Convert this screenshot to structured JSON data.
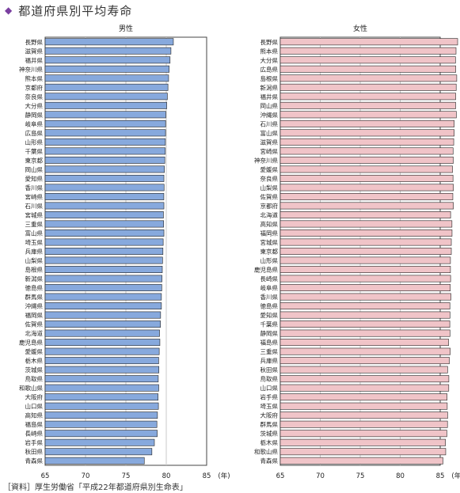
{
  "title": "都道府県別平均寿命",
  "source": "［資料］厚生労働省「平成22年都道府県別生命表」",
  "colors": {
    "male": "#87a9dd",
    "female": "#f0c4c8",
    "bar_stroke": "#222222",
    "title_bullet": "#7a3fa0",
    "grid": "#c8c8c8"
  },
  "chart_data": [
    {
      "type": "bar",
      "orientation": "horizontal",
      "title": "男性",
      "unit": "(年)",
      "xlim": [
        65,
        85
      ],
      "ticks": [
        65,
        70,
        75,
        80,
        85
      ],
      "grid": true,
      "categories": [
        "長野県",
        "滋賀県",
        "福井県",
        "神奈川県",
        "熊本県",
        "京都府",
        "奈良県",
        "大分県",
        "静岡県",
        "岐阜県",
        "広島県",
        "山形県",
        "千葉県",
        "東京都",
        "岡山県",
        "愛知県",
        "香川県",
        "宮崎県",
        "石川県",
        "宮城県",
        "三重県",
        "富山県",
        "埼玉県",
        "兵庫県",
        "山梨県",
        "島根県",
        "新潟県",
        "徳島県",
        "群馬県",
        "沖縄県",
        "福岡県",
        "佐賀県",
        "北海道",
        "鹿児島県",
        "愛媛県",
        "栃木県",
        "茨城県",
        "鳥取県",
        "和歌山県",
        "大阪府",
        "山口県",
        "高知県",
        "福島県",
        "長崎県",
        "岩手県",
        "秋田県",
        "青森県"
      ],
      "values": [
        80.88,
        80.58,
        80.47,
        80.36,
        80.29,
        80.21,
        80.14,
        80.06,
        79.95,
        79.92,
        79.91,
        79.89,
        79.88,
        79.82,
        79.77,
        79.71,
        79.73,
        79.7,
        79.71,
        79.65,
        79.68,
        79.71,
        79.62,
        79.59,
        79.54,
        79.51,
        79.47,
        79.44,
        79.4,
        79.4,
        79.3,
        79.28,
        79.17,
        79.21,
        79.13,
        79.06,
        79.09,
        79.01,
        79.07,
        78.99,
        79.03,
        78.91,
        78.84,
        78.88,
        78.53,
        78.22,
        77.28
      ]
    },
    {
      "type": "bar",
      "orientation": "horizontal",
      "title": "女性",
      "unit": "(年)",
      "xlim": [
        65,
        85
      ],
      "ticks": [
        65,
        70,
        75,
        80,
        85
      ],
      "grid": true,
      "categories": [
        "長野県",
        "熊本県",
        "大分県",
        "広島県",
        "島根県",
        "新潟県",
        "福井県",
        "岡山県",
        "沖縄県",
        "石川県",
        "富山県",
        "滋賀県",
        "宮崎県",
        "神奈川県",
        "愛媛県",
        "奈良県",
        "山梨県",
        "佐賀県",
        "京都府",
        "北海道",
        "高知県",
        "福岡県",
        "宮城県",
        "東京都",
        "山形県",
        "鹿児島県",
        "長崎県",
        "岐阜県",
        "香川県",
        "徳島県",
        "愛知県",
        "千葉県",
        "静岡県",
        "福島県",
        "三重県",
        "兵庫県",
        "秋田県",
        "鳥取県",
        "山口県",
        "岩手県",
        "埼玉県",
        "大阪府",
        "群馬県",
        "茨城県",
        "栃木県",
        "和歌山県",
        "青森県"
      ],
      "values": [
        87.18,
        86.98,
        86.91,
        86.94,
        87.07,
        87.0,
        86.94,
        86.93,
        87.02,
        86.75,
        86.75,
        86.69,
        86.61,
        86.63,
        86.54,
        86.6,
        86.65,
        86.58,
        86.65,
        86.3,
        86.47,
        86.48,
        86.39,
        86.39,
        86.28,
        86.28,
        86.3,
        86.26,
        86.34,
        86.21,
        86.22,
        86.2,
        86.22,
        86.05,
        86.25,
        86.14,
        85.93,
        86.08,
        86.07,
        85.86,
        85.88,
        85.93,
        85.91,
        85.83,
        85.66,
        85.69,
        85.34
      ]
    }
  ]
}
